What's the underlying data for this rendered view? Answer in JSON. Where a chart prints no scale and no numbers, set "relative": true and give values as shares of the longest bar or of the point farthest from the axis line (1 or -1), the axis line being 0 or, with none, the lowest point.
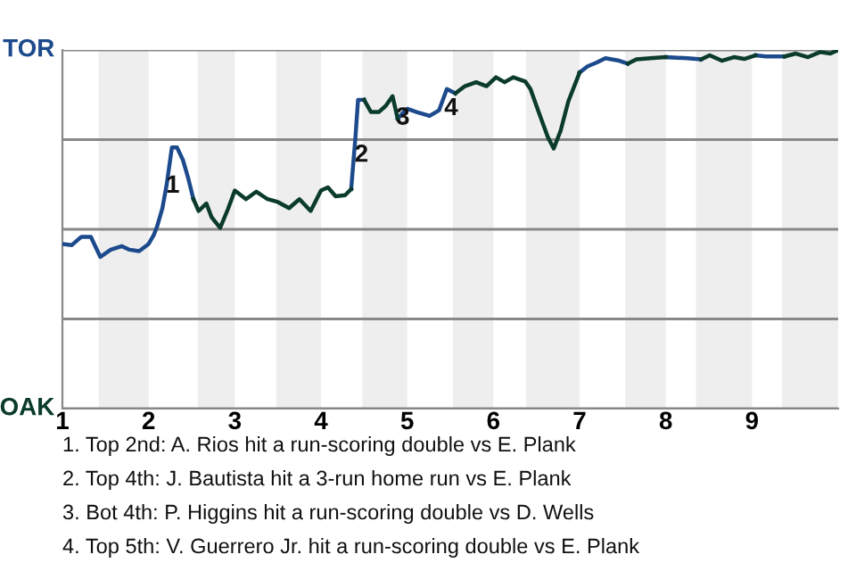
{
  "chart_data": {
    "type": "line",
    "relative": true,
    "xlim": [
      1,
      10
    ],
    "xticks": [
      1,
      2,
      3,
      4,
      5,
      6,
      7,
      8,
      9
    ],
    "grid": "y",
    "marker": "none",
    "line_style": "solid",
    "series": [
      {
        "color": "#1c4a8c",
        "x": [
          1.0,
          1.11,
          1.22,
          1.33,
          1.44,
          1.56,
          1.69,
          1.78,
          1.89,
          2.0,
          2.06,
          2.1,
          2.16,
          2.21,
          2.27,
          2.33,
          2.4,
          2.46,
          2.52,
          3.38,
          4.35,
          4.4,
          4.43,
          4.5,
          4.67,
          4.89,
          4.98,
          5.0,
          5.11,
          5.26,
          5.37,
          5.46,
          5.56,
          6.3,
          7.0,
          7.09,
          7.2,
          7.3,
          7.46,
          7.56,
          7.73,
          8.0,
          8.25,
          8.41,
          8.75,
          9.04,
          9.16,
          9.38
        ],
        "values": [
          0.459,
          0.456,
          0.479,
          0.479,
          0.423,
          0.443,
          0.453,
          0.443,
          0.439,
          0.459,
          0.484,
          0.509,
          0.559,
          0.625,
          0.728,
          0.728,
          0.692,
          0.642,
          0.584,
          null,
          0.612,
          0.758,
          0.861,
          0.861,
          null,
          0.808,
          0.832,
          0.836,
          0.827,
          0.816,
          0.832,
          0.891,
          0.879,
          null,
          0.937,
          0.954,
          0.965,
          0.977,
          0.97,
          0.962,
          null,
          0.98,
          0.977,
          0.974,
          null,
          0.985,
          0.982,
          0.982
        ]
      },
      {
        "color": "#0b3b2c",
        "x": [
          2.52,
          2.58,
          2.67,
          2.73,
          2.83,
          2.92,
          3.0,
          3.13,
          3.25,
          3.38,
          3.5,
          3.63,
          3.75,
          3.88,
          4.0,
          4.08,
          4.17,
          4.28,
          4.35,
          4.42,
          4.5,
          4.58,
          4.67,
          4.75,
          4.83,
          4.89,
          5.22,
          5.56,
          5.67,
          5.8,
          5.92,
          6.03,
          6.13,
          6.23,
          6.37,
          6.43,
          6.53,
          6.63,
          6.7,
          6.78,
          6.87,
          7.0,
          7.27,
          7.56,
          7.66,
          7.82,
          8.0,
          8.13,
          8.41,
          8.51,
          8.65,
          8.79,
          8.91,
          9.04,
          9.25,
          9.38,
          9.51,
          9.65,
          9.79,
          9.91,
          10.0
        ],
        "values": [
          0.584,
          0.551,
          0.572,
          0.534,
          0.504,
          0.556,
          0.608,
          0.584,
          0.605,
          0.584,
          0.576,
          0.559,
          0.584,
          0.551,
          0.608,
          0.617,
          0.592,
          0.595,
          0.612,
          null,
          0.861,
          0.827,
          0.827,
          0.844,
          0.871,
          0.808,
          null,
          0.879,
          0.899,
          0.91,
          0.899,
          0.924,
          0.91,
          0.924,
          0.912,
          0.891,
          0.824,
          0.758,
          0.725,
          0.775,
          0.857,
          0.937,
          null,
          0.962,
          0.974,
          0.977,
          0.98,
          null,
          0.974,
          0.985,
          0.97,
          0.98,
          0.975,
          0.985,
          null,
          0.982,
          0.99,
          0.98,
          0.994,
          0.99,
          1.0
        ]
      }
    ],
    "bands": [
      {
        "axis": "x",
        "from": 1.42,
        "to": 2,
        "color": "#eeeeee"
      },
      {
        "axis": "x",
        "from": 2.57,
        "to": 3,
        "color": "#eeeeee"
      },
      {
        "axis": "x",
        "from": 3.48,
        "to": 4,
        "color": "#eeeeee"
      },
      {
        "axis": "x",
        "from": 4.48,
        "to": 5,
        "color": "#eeeeee"
      },
      {
        "axis": "x",
        "from": 5.53,
        "to": 6,
        "color": "#eeeeee"
      },
      {
        "axis": "x",
        "from": 6.38,
        "to": 7,
        "color": "#eeeeee"
      },
      {
        "axis": "x",
        "from": 7.53,
        "to": 8,
        "color": "#eeeeee"
      },
      {
        "axis": "x",
        "from": 8.35,
        "to": 9,
        "color": "#eeeeee"
      },
      {
        "axis": "x",
        "from": 9.35,
        "to": 10,
        "color": "#eeeeee"
      }
    ],
    "annotations": [
      "TOR",
      "OAK",
      {
        "text": "1",
        "x": 2.28,
        "y": 0.62
      },
      {
        "text": "2",
        "x": 4.47,
        "y": 0.706
      },
      {
        "text": "3",
        "x": 4.95,
        "y": 0.81
      },
      {
        "text": "4",
        "x": 5.51,
        "y": 0.836
      },
      "1. Top 2nd: A. Rios hit a run-scoring double vs E. Plank",
      "2. Top 4th: J. Bautista hit a 3-run home run vs E. Plank",
      "3. Bot 4th: P. Higgins hit a run-scoring double vs D. Wells",
      "4. Top 5th: V. Guerrero Jr. hit a run-scoring double vs E. Plank"
    ]
  }
}
